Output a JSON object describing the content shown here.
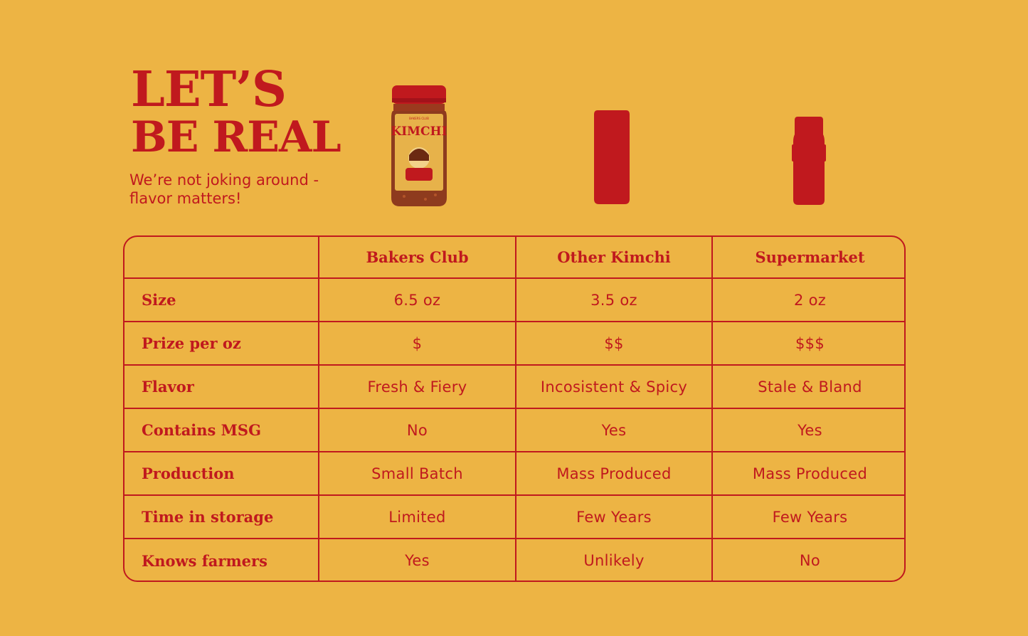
{
  "header": {
    "headline_line1": "LET’S",
    "headline_line2": "BE REAL",
    "tagline": "We’re not joking around - flavor matters!"
  },
  "products": {
    "bakers_jar_label": "KIMCHI",
    "bakers_jar_brand": "BAKERS CLUB",
    "colors": {
      "jar_red": "#C0191E",
      "lid_red": "#B8131C",
      "background": "#EDB444"
    }
  },
  "table": {
    "columns": [
      "",
      "Bakers Club",
      "Other Kimchi",
      "Supermarket"
    ],
    "rows": [
      {
        "label": "Size",
        "values": [
          "6.5 oz",
          "3.5 oz",
          "2 oz"
        ]
      },
      {
        "label": "Prize per oz",
        "values": [
          "$",
          "$$",
          "$$$"
        ]
      },
      {
        "label": "Flavor",
        "values": [
          "Fresh & Fiery",
          "Incosistent & Spicy",
          "Stale & Bland"
        ]
      },
      {
        "label": "Contains MSG",
        "values": [
          "No",
          "Yes",
          "Yes"
        ]
      },
      {
        "label": "Production",
        "values": [
          "Small Batch",
          "Mass Produced",
          "Mass Produced"
        ]
      },
      {
        "label": "Time in storage",
        "values": [
          "Limited",
          "Few Years",
          "Few Years"
        ]
      },
      {
        "label": "Knows farmers",
        "values": [
          "Yes",
          "Unlikely",
          "No"
        ]
      }
    ]
  }
}
